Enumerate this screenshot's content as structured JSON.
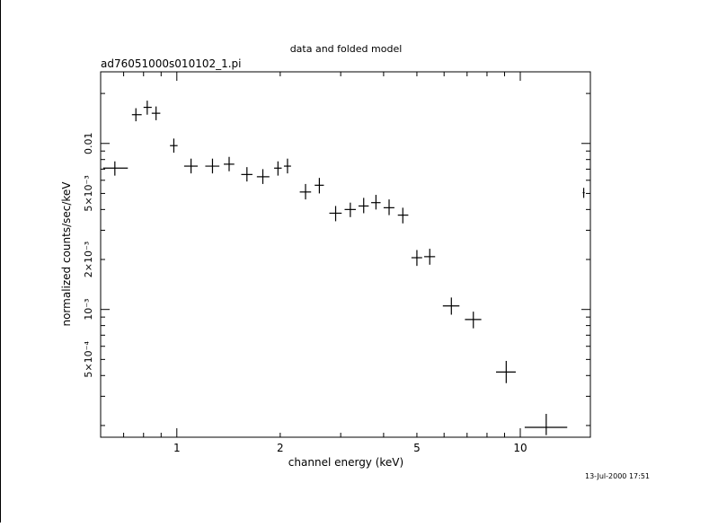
{
  "chart_data": {
    "type": "scatter",
    "title": "data and folded model",
    "subtitle": "ad76051000s010102_1.pi",
    "xlabel": "channel energy (keV)",
    "ylabel": "normalized counts/sec/keV",
    "x_scale": "log",
    "y_scale": "log",
    "xlim": [
      0.6,
      16
    ],
    "ylim": [
      0.00017,
      0.027
    ],
    "x_tick_labels": [
      {
        "value": 1,
        "label": "1"
      },
      {
        "value": 2,
        "label": "2"
      },
      {
        "value": 5,
        "label": "5"
      },
      {
        "value": 10,
        "label": "10"
      }
    ],
    "y_tick_labels": [
      {
        "value": 0.01,
        "label": "0.01"
      },
      {
        "value": 0.005,
        "label": "5×10⁻³"
      },
      {
        "value": 0.002,
        "label": "2×10⁻³"
      },
      {
        "value": 0.001,
        "label": "10⁻³"
      },
      {
        "value": 0.0005,
        "label": "5×10⁻⁴"
      }
    ],
    "grid": false,
    "points": [
      {
        "x": 0.66,
        "y": 0.0071,
        "x_lo": 0.61,
        "x_hi": 0.72,
        "y_lo": 0.0064,
        "y_hi": 0.0078
      },
      {
        "x": 0.76,
        "y": 0.0149,
        "x_lo": 0.74,
        "x_hi": 0.79,
        "y_lo": 0.0136,
        "y_hi": 0.0163
      },
      {
        "x": 0.82,
        "y": 0.0165,
        "x_lo": 0.8,
        "x_hi": 0.845,
        "y_lo": 0.0149,
        "y_hi": 0.0181
      },
      {
        "x": 0.87,
        "y": 0.0152,
        "x_lo": 0.845,
        "x_hi": 0.895,
        "y_lo": 0.0138,
        "y_hi": 0.0167
      },
      {
        "x": 0.98,
        "y": 0.0097,
        "x_lo": 0.955,
        "x_hi": 1.005,
        "y_lo": 0.0088,
        "y_hi": 0.0107
      },
      {
        "x": 1.1,
        "y": 0.0073,
        "x_lo": 1.05,
        "x_hi": 1.15,
        "y_lo": 0.0066,
        "y_hi": 0.0081
      },
      {
        "x": 1.27,
        "y": 0.0073,
        "x_lo": 1.21,
        "x_hi": 1.33,
        "y_lo": 0.0066,
        "y_hi": 0.0081
      },
      {
        "x": 1.42,
        "y": 0.0075,
        "x_lo": 1.37,
        "x_hi": 1.47,
        "y_lo": 0.0068,
        "y_hi": 0.0083
      },
      {
        "x": 1.6,
        "y": 0.0065,
        "x_lo": 1.54,
        "x_hi": 1.66,
        "y_lo": 0.0059,
        "y_hi": 0.0072
      },
      {
        "x": 1.78,
        "y": 0.0063,
        "x_lo": 1.71,
        "x_hi": 1.86,
        "y_lo": 0.0057,
        "y_hi": 0.007
      },
      {
        "x": 1.97,
        "y": 0.0071,
        "x_lo": 1.92,
        "x_hi": 2.02,
        "y_lo": 0.0064,
        "y_hi": 0.0078
      },
      {
        "x": 2.1,
        "y": 0.0073,
        "x_lo": 2.05,
        "x_hi": 2.15,
        "y_lo": 0.0066,
        "y_hi": 0.0081
      },
      {
        "x": 2.37,
        "y": 0.0051,
        "x_lo": 2.28,
        "x_hi": 2.46,
        "y_lo": 0.0046,
        "y_hi": 0.0057
      },
      {
        "x": 2.6,
        "y": 0.0056,
        "x_lo": 2.52,
        "x_hi": 2.68,
        "y_lo": 0.005,
        "y_hi": 0.0062
      },
      {
        "x": 2.9,
        "y": 0.0038,
        "x_lo": 2.78,
        "x_hi": 3.02,
        "y_lo": 0.0034,
        "y_hi": 0.0042
      },
      {
        "x": 3.2,
        "y": 0.004,
        "x_lo": 3.08,
        "x_hi": 3.32,
        "y_lo": 0.0036,
        "y_hi": 0.0044
      },
      {
        "x": 3.5,
        "y": 0.0042,
        "x_lo": 3.38,
        "x_hi": 3.62,
        "y_lo": 0.0038,
        "y_hi": 0.0047
      },
      {
        "x": 3.8,
        "y": 0.0044,
        "x_lo": 3.68,
        "x_hi": 3.92,
        "y_lo": 0.004,
        "y_hi": 0.0049
      },
      {
        "x": 4.15,
        "y": 0.0041,
        "x_lo": 4.0,
        "x_hi": 4.3,
        "y_lo": 0.0037,
        "y_hi": 0.0046
      },
      {
        "x": 4.55,
        "y": 0.0037,
        "x_lo": 4.4,
        "x_hi": 4.72,
        "y_lo": 0.0033,
        "y_hi": 0.0041
      },
      {
        "x": 5.0,
        "y": 0.00205,
        "x_lo": 4.82,
        "x_hi": 5.18,
        "y_lo": 0.00183,
        "y_hi": 0.00228
      },
      {
        "x": 5.45,
        "y": 0.00208,
        "x_lo": 5.25,
        "x_hi": 5.65,
        "y_lo": 0.00186,
        "y_hi": 0.00232
      },
      {
        "x": 6.3,
        "y": 0.00105,
        "x_lo": 5.95,
        "x_hi": 6.65,
        "y_lo": 0.00093,
        "y_hi": 0.00118
      },
      {
        "x": 7.3,
        "y": 0.00087,
        "x_lo": 6.9,
        "x_hi": 7.7,
        "y_lo": 0.00077,
        "y_hi": 0.00097
      },
      {
        "x": 9.1,
        "y": 0.00042,
        "x_lo": 8.5,
        "x_hi": 9.7,
        "y_lo": 0.00036,
        "y_hi": 0.00049
      },
      {
        "x": 11.9,
        "y": 0.000195,
        "x_lo": 10.3,
        "x_hi": 13.7,
        "y_lo": 0.000175,
        "y_hi": 0.000235
      },
      {
        "x": 15.3,
        "y": 0.00505,
        "x_lo": 15.2,
        "x_hi": 15.4,
        "y_lo": 0.0047,
        "y_hi": 0.0054
      }
    ],
    "timestamp": "13-Jul-2000 17:51"
  }
}
